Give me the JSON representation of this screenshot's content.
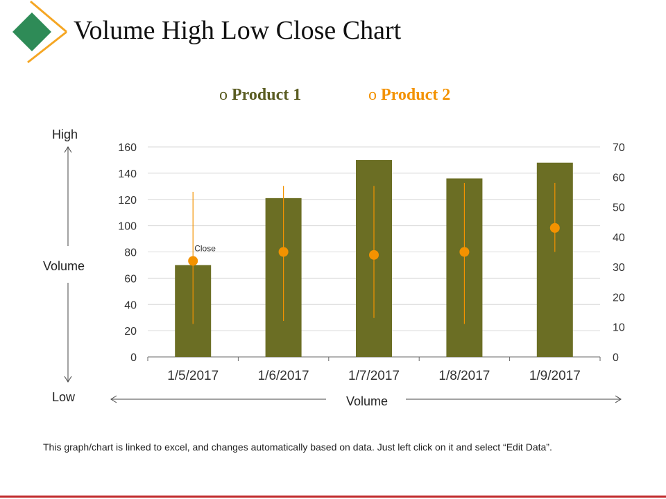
{
  "page": {
    "title": "Volume High Low Close Chart",
    "footnote": "This graph/chart is linked to excel, and changes automatically based on data. Just left click on it and select “Edit Data”.",
    "side_labels": {
      "high": "High",
      "volume_left": "Volume",
      "low": "Low",
      "volume_bottom": "Volume"
    },
    "colors": {
      "accent_green": "#2e8b57",
      "accent_orange": "#f5a623",
      "bar": "#6b6e24",
      "marker": "#f39200",
      "rule": "#c0292b",
      "legend_1": "#5a5c22",
      "legend_2": "#f39200"
    }
  },
  "legend": [
    {
      "marker": "o",
      "label": "Product 1"
    },
    {
      "marker": "o",
      "label": "Product 2"
    }
  ],
  "chart_data": {
    "type": "bar",
    "categories": [
      "1/5/2017",
      "1/6/2017",
      "1/7/2017",
      "1/8/2017",
      "1/9/2017"
    ],
    "y_left": {
      "ylim": [
        0,
        160
      ],
      "ticks": [
        "0",
        "20",
        "40",
        "60",
        "80",
        "100",
        "120",
        "140",
        "160"
      ]
    },
    "y_right": {
      "ylim": [
        0,
        70
      ],
      "ticks": [
        "0",
        "10",
        "20",
        "30",
        "40",
        "50",
        "60",
        "70"
      ]
    },
    "grid": true,
    "legend_position": "top",
    "series": [
      {
        "name": "Product 1",
        "axis": "left",
        "values": [
          70,
          121,
          150,
          136,
          148
        ]
      },
      {
        "name": "Product 2",
        "axis": "right",
        "high": [
          55,
          57,
          57,
          58,
          58
        ],
        "low": [
          11,
          12,
          13,
          11,
          35
        ],
        "close": [
          32,
          35,
          34,
          35,
          43
        ]
      }
    ],
    "annotations": [
      {
        "category": "1/5/2017",
        "text": "Close"
      }
    ]
  }
}
